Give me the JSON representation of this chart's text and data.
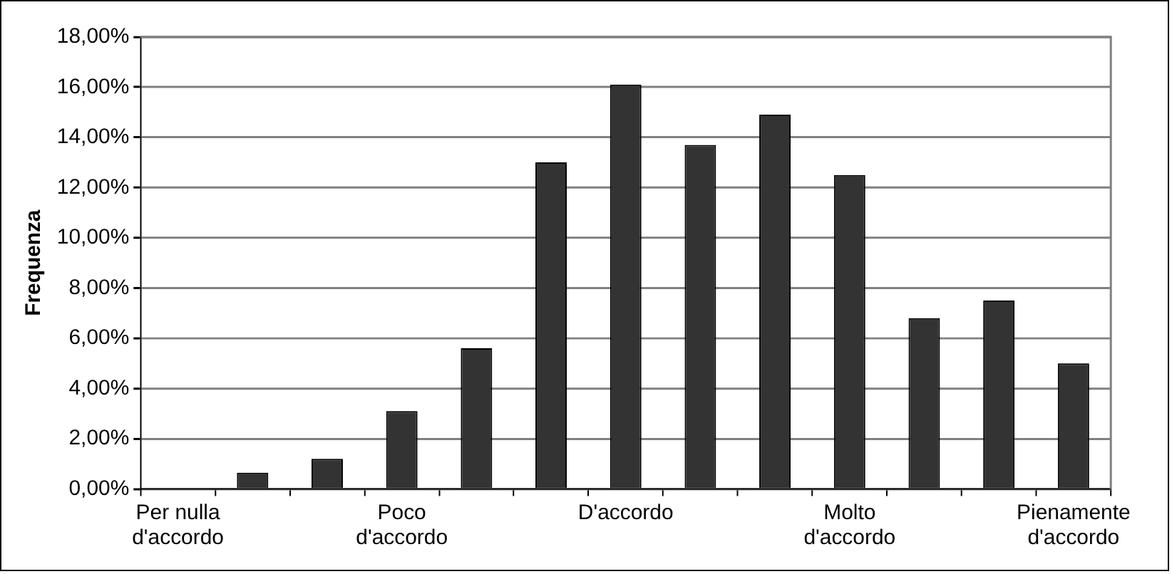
{
  "chart_data": {
    "type": "bar",
    "ylabel": "Frequenza",
    "categories": [
      "Per nulla d'accordo",
      null,
      null,
      "Poco d'accordo",
      null,
      null,
      "D'accordo",
      null,
      null,
      "Molto d'accordo",
      null,
      null,
      "Pienamente d'accordo"
    ],
    "values": [
      0,
      0.65,
      1.2,
      3.1,
      5.6,
      13.0,
      16.1,
      13.7,
      14.9,
      12.5,
      6.8,
      7.5,
      5.0
    ],
    "color": "#333333",
    "ylim": [
      0,
      18
    ],
    "yticks": [
      {
        "value": 0,
        "label": "0,00%"
      },
      {
        "value": 2,
        "label": "2,00%"
      },
      {
        "value": 4,
        "label": "4,00%"
      },
      {
        "value": 6,
        "label": "6,00%"
      },
      {
        "value": 8,
        "label": "8,00%"
      },
      {
        "value": 10,
        "label": "10,00%"
      },
      {
        "value": 12,
        "label": "12,00%"
      },
      {
        "value": 14,
        "label": "14,00%"
      },
      {
        "value": 16,
        "label": "16,00%"
      },
      {
        "value": 18,
        "label": "18,00%"
      }
    ],
    "grid": "y",
    "legend": false
  }
}
